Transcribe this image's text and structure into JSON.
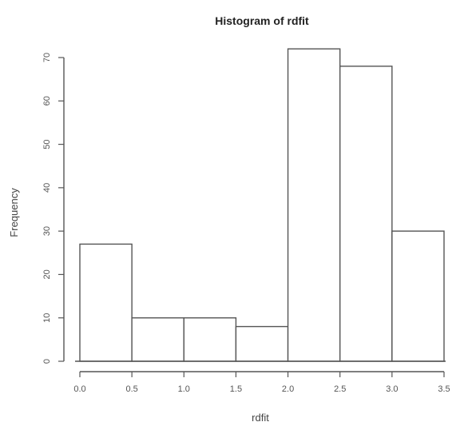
{
  "chart_data": {
    "type": "bar",
    "title": "Histogram of rdfit",
    "xlabel": "rdfit",
    "ylabel": "Frequency",
    "bins": [
      {
        "x0": 0.0,
        "x1": 0.5,
        "count": 27
      },
      {
        "x0": 0.5,
        "x1": 1.0,
        "count": 10
      },
      {
        "x0": 1.0,
        "x1": 1.5,
        "count": 10
      },
      {
        "x0": 1.5,
        "x1": 2.0,
        "count": 8
      },
      {
        "x0": 2.0,
        "x1": 2.5,
        "count": 72
      },
      {
        "x0": 2.5,
        "x1": 3.0,
        "count": 68
      },
      {
        "x0": 3.0,
        "x1": 3.5,
        "count": 30
      }
    ],
    "xlim": [
      0,
      3.5
    ],
    "ylim": [
      0,
      70
    ],
    "xticks": [
      0.0,
      0.5,
      1.0,
      1.5,
      2.0,
      2.5,
      3.0,
      3.5
    ],
    "xtick_labels": [
      "0.0",
      "0.5",
      "1.0",
      "1.5",
      "2.0",
      "2.5",
      "3.0",
      "3.5"
    ],
    "yticks": [
      0,
      10,
      20,
      30,
      40,
      50,
      60,
      70
    ],
    "ytick_labels": [
      "0",
      "10",
      "20",
      "30",
      "40",
      "50",
      "60",
      "70"
    ],
    "grid": false,
    "legend": "none"
  }
}
